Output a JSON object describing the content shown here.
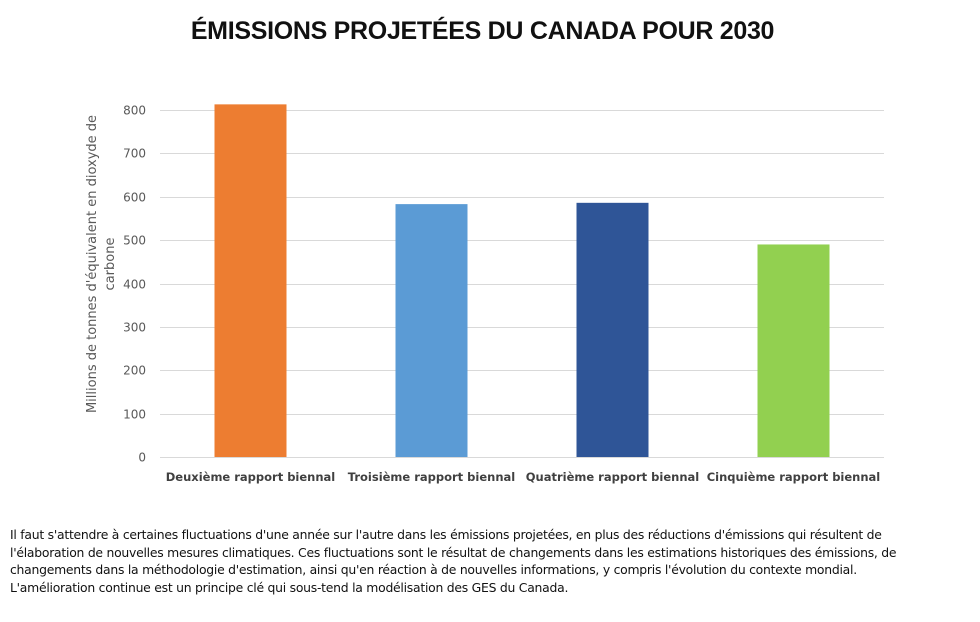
{
  "chart_data": {
    "type": "bar",
    "title": "ÉMISSIONS PROJETÉES DU CANADA POUR 2030",
    "xlabel": "",
    "ylabel_lines": [
      "Millions de tonnes d'équivalent en dioxyde de",
      "carbone"
    ],
    "ylabel": "Millions de tonnes d'équivalent en dioxyde de carbone",
    "ylim": [
      0,
      800
    ],
    "yticks": [
      0,
      100,
      200,
      300,
      400,
      500,
      600,
      700,
      800
    ],
    "grid": true,
    "legend": "none",
    "categories": [
      "Deuxième rapport biennal",
      "Troisième rapport biennal",
      "Quatrième rapport biennal",
      "Cinquième rapport biennal"
    ],
    "values": [
      813,
      583,
      586,
      490
    ],
    "colors": [
      "#ED7D31",
      "#5B9BD5",
      "#2F5597",
      "#92D050"
    ]
  },
  "caption": {
    "lines": [
      "Il faut s'attendre à certaines fluctuations d'une année sur l'autre dans les émissions projetées, en plus des réductions d'émissions qui résultent de",
      "l'élaboration de nouvelles mesures climatiques. Ces fluctuations sont le résultat de changements dans les estimations historiques des émissions, de",
      "changements dans la méthodologie d'estimation, ainsi qu'en réaction à de nouvelles informations, y compris l'évolution du contexte mondial.",
      "L'amélioration continue est un principe clé qui sous-tend la modélisation des GES du Canada."
    ]
  }
}
